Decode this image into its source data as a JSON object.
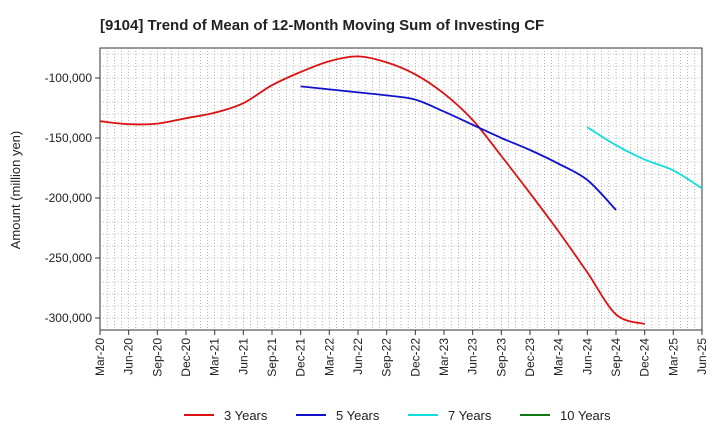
{
  "chart_data": {
    "type": "line",
    "title": "[9104]  Trend of Mean of 12-Month Moving Sum of Investing CF",
    "xlabel": "",
    "ylabel": "Amount (million yen)",
    "x_ticks": [
      "Mar-20",
      "Jun-20",
      "Sep-20",
      "Dec-20",
      "Mar-21",
      "Jun-21",
      "Sep-21",
      "Dec-21",
      "Mar-22",
      "Jun-22",
      "Sep-22",
      "Dec-22",
      "Mar-23",
      "Jun-23",
      "Sep-23",
      "Dec-23",
      "Mar-24",
      "Jun-24",
      "Sep-24",
      "Dec-24",
      "Mar-25",
      "Jun-25"
    ],
    "y_ticks": [
      -100000,
      -150000,
      -200000,
      -250000,
      -300000
    ],
    "y_tick_labels": [
      "-100,000",
      "-150,000",
      "-200,000",
      "-250,000",
      "-300,000"
    ],
    "ylim": [
      -310000,
      -75000
    ],
    "grid": true,
    "legend_position": "bottom",
    "series": [
      {
        "name": "3 Years",
        "color": "#dd1111",
        "start_index": 0,
        "values": [
          -136000,
          -138500,
          -138000,
          -133500,
          -129000,
          -121000,
          -106000,
          -95000,
          -86000,
          -82000,
          -87000,
          -97000,
          -113000,
          -135000,
          -165000,
          -196000,
          -228000,
          -262000,
          -297000,
          -305000
        ]
      },
      {
        "name": "5 Years",
        "color": "#1111cc",
        "start_index": 7,
        "values": [
          -107000,
          -109500,
          -112000,
          -114500,
          -118000,
          -128000,
          -139000,
          -150000,
          -160000,
          -171500,
          -185000,
          -210000
        ]
      },
      {
        "name": "7 Years",
        "color": "#11dddd",
        "start_index": 17,
        "values": [
          -141000,
          -156000,
          -168000,
          -177000,
          -192000
        ]
      },
      {
        "name": "10 Years",
        "color": "#117711",
        "start_index": 0,
        "values": []
      }
    ]
  }
}
